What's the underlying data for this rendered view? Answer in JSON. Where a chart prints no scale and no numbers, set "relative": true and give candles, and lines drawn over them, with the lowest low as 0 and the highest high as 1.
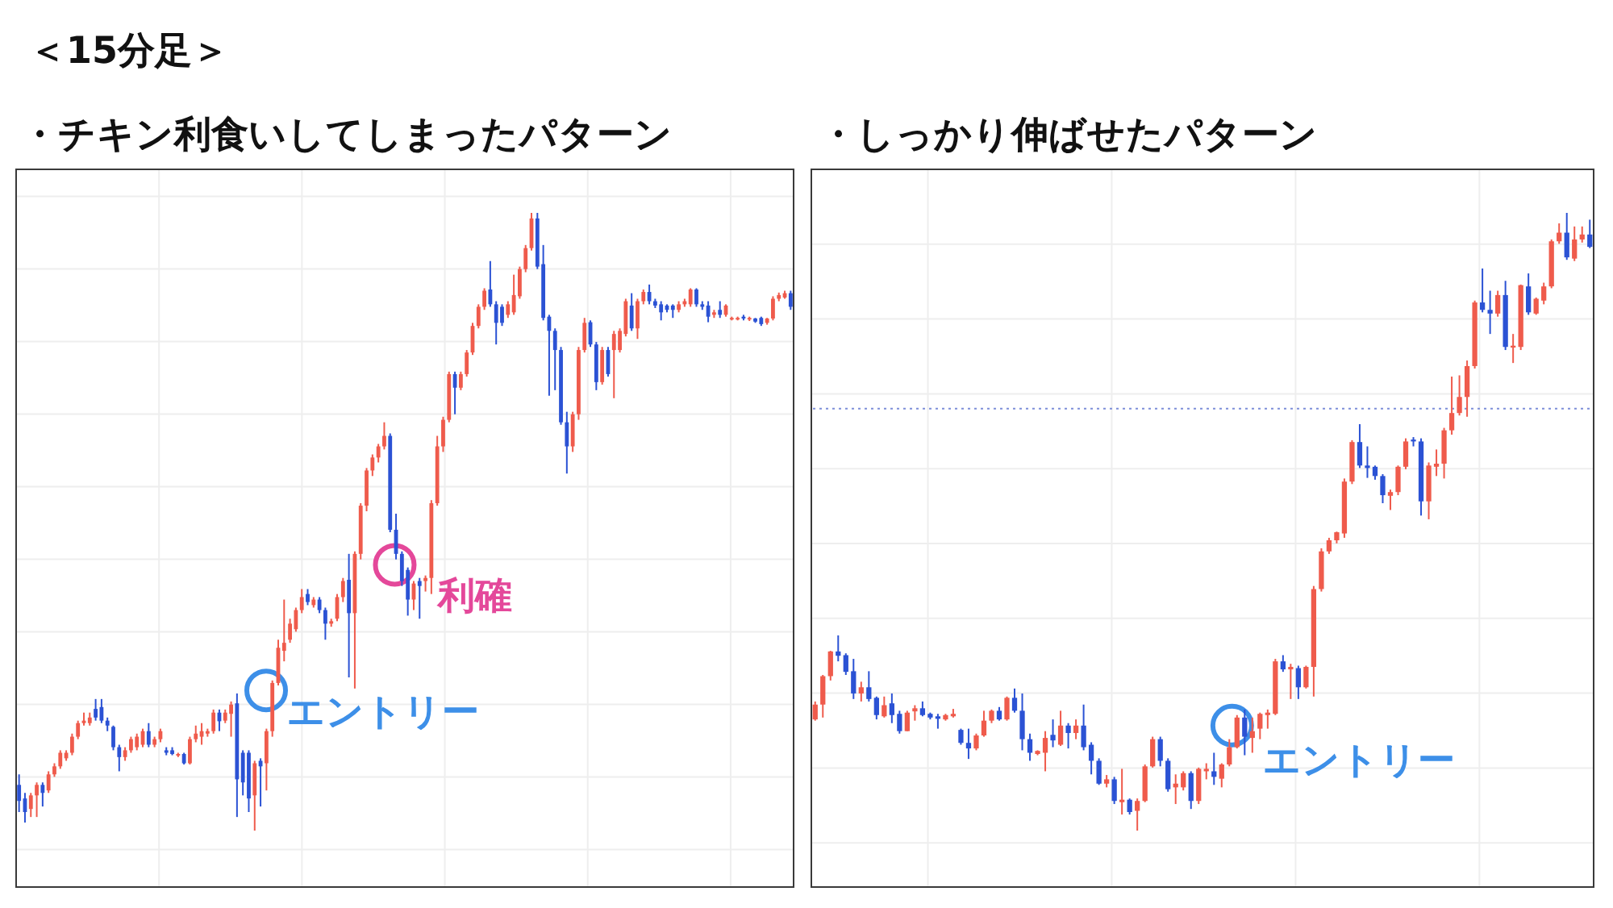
{
  "chart_data": [
    {
      "type": "candlestick",
      "title": "＜15分足＞",
      "subtitle": "・チキン利食いしてしまったパターン",
      "relative": true,
      "grid": true,
      "categories": [
        null,
        null,
        null,
        null,
        null,
        null,
        null,
        null,
        null,
        null,
        null,
        null,
        null,
        null,
        null,
        null,
        null,
        null,
        null,
        null,
        null,
        null,
        null,
        null,
        null,
        null,
        null,
        null,
        null,
        null,
        null,
        null,
        null,
        null,
        null,
        null,
        null,
        null,
        null,
        null,
        null,
        null,
        null,
        null,
        null,
        null,
        null,
        null,
        null,
        null,
        null,
        null,
        null,
        null,
        null,
        null,
        null,
        null,
        null,
        null,
        null,
        null,
        null,
        null,
        null,
        null,
        null,
        null,
        null,
        null,
        null,
        null,
        null,
        null,
        null,
        null,
        null,
        null,
        null,
        null,
        null,
        null,
        null,
        null,
        null,
        null,
        null,
        null,
        null,
        null,
        null,
        null,
        null,
        null,
        null,
        null,
        null,
        null,
        null,
        null,
        null,
        null,
        null,
        null,
        null,
        null,
        null,
        null,
        null,
        null,
        null,
        null,
        null,
        null,
        null,
        null,
        null,
        null,
        null,
        null,
        null,
        null,
        null,
        null,
        null,
        null,
        null,
        null,
        null,
        null,
        null,
        null
      ],
      "ohlc": [
        [
          0.074,
          0.091,
          0.03,
          0.048
        ],
        [
          0.052,
          0.061,
          0.013,
          0.03
        ],
        [
          0.035,
          0.061,
          0.022,
          0.057
        ],
        [
          0.057,
          0.078,
          0.022,
          0.074
        ],
        [
          0.074,
          0.078,
          0.039,
          0.061
        ],
        [
          0.065,
          0.096,
          0.061,
          0.091
        ],
        [
          0.091,
          0.109,
          0.087,
          0.104
        ],
        [
          0.104,
          0.13,
          0.1,
          0.126
        ],
        [
          0.117,
          0.13,
          0.113,
          0.126
        ],
        [
          0.126,
          0.157,
          0.122,
          0.152
        ],
        [
          0.152,
          0.178,
          0.148,
          0.174
        ],
        [
          0.174,
          0.191,
          0.17,
          0.178
        ],
        [
          0.174,
          0.191,
          0.17,
          0.183
        ],
        [
          0.197,
          0.213,
          0.178,
          0.183
        ],
        [
          0.2,
          0.213,
          0.174,
          0.178
        ],
        [
          0.178,
          0.183,
          0.161,
          0.17
        ],
        [
          0.168,
          0.17,
          0.13,
          0.135
        ],
        [
          0.135,
          0.139,
          0.096,
          0.119
        ],
        [
          0.119,
          0.135,
          0.113,
          0.13
        ],
        [
          0.13,
          0.152,
          0.126,
          0.148
        ],
        [
          0.135,
          0.157,
          0.13,
          0.152
        ],
        [
          0.139,
          0.165,
          0.135,
          0.161
        ],
        [
          0.161,
          0.174,
          0.135,
          0.139
        ],
        [
          0.139,
          0.152,
          0.135,
          0.148
        ],
        [
          0.148,
          0.165,
          0.143,
          0.161
        ],
        [
          0.13,
          0.135,
          0.122,
          0.126
        ],
        [
          0.13,
          0.135,
          0.122,
          0.124
        ],
        [
          0.122,
          0.126,
          0.119,
          0.124
        ],
        [
          0.124,
          0.126,
          0.107,
          0.109
        ],
        [
          0.109,
          0.152,
          0.107,
          0.148
        ],
        [
          0.148,
          0.17,
          0.143,
          0.157
        ],
        [
          0.152,
          0.174,
          0.139,
          0.161
        ],
        [
          0.157,
          0.165,
          0.152,
          0.161
        ],
        [
          0.161,
          0.196,
          0.157,
          0.191
        ],
        [
          0.191,
          0.196,
          0.161,
          0.177
        ],
        [
          0.178,
          0.196,
          0.174,
          0.191
        ],
        [
          0.189,
          0.209,
          0.152,
          0.204
        ],
        [
          0.206,
          0.222,
          0.022,
          0.083
        ],
        [
          0.126,
          0.13,
          0.057,
          0.078
        ],
        [
          0.126,
          0.13,
          0.03,
          0.052
        ],
        [
          0.057,
          0.113,
          0,
          0.109
        ],
        [
          0.113,
          0.117,
          0.039,
          0.104
        ],
        [
          0.109,
          0.165,
          0.065,
          0.161
        ],
        [
          0.161,
          0.243,
          0.152,
          0.239
        ],
        [
          0.239,
          0.309,
          0.235,
          0.296
        ],
        [
          0.291,
          0.374,
          0.274,
          0.304
        ],
        [
          0.309,
          0.343,
          0.304,
          0.335
        ],
        [
          0.326,
          0.361,
          0.322,
          0.357
        ],
        [
          0.357,
          0.391,
          0.352,
          0.378
        ],
        [
          0.383,
          0.391,
          0.365,
          0.37
        ],
        [
          0.365,
          0.378,
          0.361,
          0.374
        ],
        [
          0.374,
          0.378,
          0.352,
          0.357
        ],
        [
          0.357,
          0.361,
          0.309,
          0.335
        ],
        [
          0.335,
          0.343,
          0.33,
          0.339
        ],
        [
          0.343,
          0.383,
          0.339,
          0.378
        ],
        [
          0.378,
          0.409,
          0.37,
          0.404
        ],
        [
          0.406,
          0.448,
          0.248,
          0.352
        ],
        [
          0.352,
          0.452,
          0.23,
          0.448
        ],
        [
          0.448,
          0.53,
          0.439,
          0.526
        ],
        [
          0.526,
          0.587,
          0.517,
          0.583
        ],
        [
          0.583,
          0.609,
          0.574,
          0.604
        ],
        [
          0.604,
          0.626,
          0.596,
          0.622
        ],
        [
          0.622,
          0.661,
          0.617,
          0.639
        ],
        [
          0.639,
          0.643,
          0.483,
          0.487
        ],
        [
          0.487,
          0.513,
          0.439,
          0.448
        ],
        [
          0.448,
          0.452,
          0.396,
          0.404
        ],
        [
          0.422,
          0.426,
          0.348,
          0.374
        ],
        [
          0.374,
          0.404,
          0.357,
          0.4
        ],
        [
          0.404,
          0.409,
          0.343,
          0.396
        ],
        [
          0.404,
          0.413,
          0.387,
          0.409
        ],
        [
          0.409,
          0.535,
          0.383,
          0.53
        ],
        [
          0.53,
          0.639,
          0.526,
          0.622
        ],
        [
          0.622,
          0.67,
          0.613,
          0.665
        ],
        [
          0.665,
          0.743,
          0.661,
          0.739
        ],
        [
          0.739,
          0.743,
          0.674,
          0.717
        ],
        [
          0.717,
          0.743,
          0.713,
          0.739
        ],
        [
          0.739,
          0.778,
          0.735,
          0.774
        ],
        [
          0.774,
          0.822,
          0.77,
          0.817
        ],
        [
          0.817,
          0.852,
          0.813,
          0.848
        ],
        [
          0.848,
          0.878,
          0.843,
          0.874
        ],
        [
          0.876,
          0.922,
          0.848,
          0.852
        ],
        [
          0.852,
          0.857,
          0.787,
          0.822
        ],
        [
          0.848,
          0.852,
          0.817,
          0.822
        ],
        [
          0.835,
          0.857,
          0.83,
          0.852
        ],
        [
          0.839,
          0.9,
          0.835,
          0.867
        ],
        [
          0.865,
          0.913,
          0.861,
          0.909
        ],
        [
          0.909,
          0.948,
          0.904,
          0.943
        ],
        [
          0.943,
          1,
          0.939,
          0.991
        ],
        [
          0.991,
          1,
          0.909,
          0.913
        ],
        [
          0.917,
          0.948,
          0.826,
          0.83
        ],
        [
          0.832,
          0.835,
          0.704,
          0.809
        ],
        [
          0.809,
          0.813,
          0.713,
          0.778
        ],
        [
          0.778,
          0.783,
          0.657,
          0.661
        ],
        [
          0.661,
          0.678,
          0.578,
          0.622
        ],
        [
          0.622,
          0.678,
          0.613,
          0.674
        ],
        [
          0.674,
          0.783,
          0.665,
          0.778
        ],
        [
          0.778,
          0.83,
          0.774,
          0.822
        ],
        [
          0.823,
          0.826,
          0.783,
          0.787
        ],
        [
          0.787,
          0.791,
          0.713,
          0.726
        ],
        [
          0.726,
          0.783,
          0.722,
          0.778
        ],
        [
          0.778,
          0.783,
          0.735,
          0.739
        ],
        [
          0.778,
          0.809,
          0.7,
          0.804
        ],
        [
          0.778,
          0.813,
          0.774,
          0.809
        ],
        [
          0.804,
          0.861,
          0.8,
          0.857
        ],
        [
          0.85,
          0.87,
          0.809,
          0.813
        ],
        [
          0.813,
          0.861,
          0.796,
          0.857
        ],
        [
          0.857,
          0.876,
          0.852,
          0.872
        ],
        [
          0.872,
          0.884,
          0.852,
          0.857
        ],
        [
          0.857,
          0.861,
          0.846,
          0.85
        ],
        [
          0.852,
          0.857,
          0.826,
          0.839
        ],
        [
          0.85,
          0.852,
          0.839,
          0.843
        ],
        [
          0.85,
          0.852,
          0.83,
          0.843
        ],
        [
          0.843,
          0.857,
          0.839,
          0.852
        ],
        [
          0.852,
          0.861,
          0.848,
          0.857
        ],
        [
          0.852,
          0.878,
          0.848,
          0.876
        ],
        [
          0.876,
          0.878,
          0.848,
          0.852
        ],
        [
          0.852,
          0.857,
          0.843,
          0.848
        ],
        [
          0.85,
          0.857,
          0.823,
          0.832
        ],
        [
          0.835,
          0.843,
          0.83,
          0.839
        ],
        [
          0.843,
          0.857,
          0.83,
          0.835
        ],
        [
          0.835,
          0.852,
          0.832,
          0.85
        ],
        [
          0.829,
          0.832,
          0.826,
          0.83
        ],
        [
          0.829,
          0.832,
          0.826,
          0.83
        ],
        [
          0.832,
          0.835,
          0.826,
          0.829
        ],
        [
          0.828,
          0.832,
          0.825,
          0.83
        ],
        [
          0.829,
          0.83,
          0.822,
          0.824
        ],
        [
          0.83,
          0.832,
          0.817,
          0.82
        ],
        [
          0.822,
          0.83,
          0.819,
          0.829
        ],
        [
          0.829,
          0.865,
          0.826,
          0.861
        ],
        [
          0.861,
          0.871,
          0.857,
          0.867
        ],
        [
          0.863,
          0.874,
          0.861,
          0.87
        ],
        [
          0.87,
          0.874,
          0.843,
          0.848
        ]
      ],
      "colors": [
        "#2b52d4",
        "#2b52d4",
        "#ef5b4c",
        "#ef5b4c",
        "#2b52d4",
        "#ef5b4c",
        "#ef5b4c",
        "#ef5b4c",
        "#ef5b4c",
        "#ef5b4c",
        "#ef5b4c",
        "#ef5b4c",
        "#ef5b4c",
        "#2b52d4",
        "#2b52d4",
        "#2b52d4",
        "#2b52d4",
        "#2b52d4",
        "#ef5b4c",
        "#ef5b4c",
        "#ef5b4c",
        "#ef5b4c",
        "#2b52d4",
        "#ef5b4c",
        "#ef5b4c",
        "#2b52d4",
        "#2b52d4",
        "#ef5b4c",
        "#2b52d4",
        "#ef5b4c",
        "#ef5b4c",
        "#ef5b4c",
        "#ef5b4c",
        "#ef5b4c",
        "#2b52d4",
        "#ef5b4c",
        "#ef5b4c",
        "#2b52d4",
        "#2b52d4",
        "#2b52d4",
        "#ef5b4c",
        "#2b52d4",
        "#ef5b4c",
        "#ef5b4c",
        "#ef5b4c",
        "#ef5b4c",
        "#ef5b4c",
        "#ef5b4c",
        "#ef5b4c",
        "#2b52d4",
        "#ef5b4c",
        "#2b52d4",
        "#2b52d4",
        "#ef5b4c",
        "#ef5b4c",
        "#ef5b4c",
        "#2b52d4",
        "#ef5b4c",
        "#ef5b4c",
        "#ef5b4c",
        "#ef5b4c",
        "#ef5b4c",
        "#ef5b4c",
        "#2b52d4",
        "#2b52d4",
        "#2b52d4",
        "#2b52d4",
        "#ef5b4c",
        "#2b52d4",
        "#ef5b4c",
        "#ef5b4c",
        "#ef5b4c",
        "#ef5b4c",
        "#ef5b4c",
        "#2b52d4",
        "#ef5b4c",
        "#ef5b4c",
        "#ef5b4c",
        "#ef5b4c",
        "#ef5b4c",
        "#2b52d4",
        "#2b52d4",
        "#2b52d4",
        "#ef5b4c",
        "#ef5b4c",
        "#ef5b4c",
        "#ef5b4c",
        "#ef5b4c",
        "#2b52d4",
        "#2b52d4",
        "#2b52d4",
        "#2b52d4",
        "#2b52d4",
        "#2b52d4",
        "#ef5b4c",
        "#ef5b4c",
        "#ef5b4c",
        "#2b52d4",
        "#2b52d4",
        "#ef5b4c",
        "#2b52d4",
        "#ef5b4c",
        "#ef5b4c",
        "#ef5b4c",
        "#2b52d4",
        "#ef5b4c",
        "#ef5b4c",
        "#2b52d4",
        "#2b52d4",
        "#2b52d4",
        "#2b52d4",
        "#2b52d4",
        "#ef5b4c",
        "#ef5b4c",
        "#ef5b4c",
        "#2b52d4",
        "#2b52d4",
        "#2b52d4",
        "#ef5b4c",
        "#2b52d4",
        "#ef5b4c",
        "#ef5b4c",
        "#ef5b4c",
        "#2b52d4",
        "#ef5b4c",
        "#2b52d4",
        "#2b52d4",
        "#ef5b4c",
        "#ef5b4c",
        "#ef5b4c",
        "#ef5b4c",
        "#2b52d4"
      ],
      "annotations": [
        "エントリー",
        "利確"
      ]
    },
    {
      "type": "candlestick",
      "subtitle": "・しっかり伸ばせたパターン",
      "relative": true,
      "grid": true,
      "categories": [
        null,
        null,
        null,
        null,
        null,
        null,
        null,
        null,
        null,
        null,
        null,
        null,
        null,
        null,
        null,
        null,
        null,
        null,
        null,
        null,
        null,
        null,
        null,
        null,
        null,
        null,
        null,
        null,
        null,
        null,
        null,
        null,
        null,
        null,
        null,
        null,
        null,
        null,
        null,
        null,
        null,
        null,
        null,
        null,
        null,
        null,
        null,
        null,
        null,
        null,
        null,
        null,
        null,
        null,
        null,
        null,
        null,
        null,
        null,
        null,
        null,
        null,
        null,
        null,
        null,
        null,
        null,
        null,
        null,
        null,
        null,
        null,
        null,
        null,
        null,
        null,
        null,
        null,
        null,
        null,
        null,
        null,
        null,
        null,
        null,
        null,
        null,
        null,
        null,
        null,
        null,
        null,
        null,
        null,
        null,
        null,
        null,
        null,
        null,
        null,
        null,
        null
      ],
      "ohlc": [
        [
          0.18,
          0.209,
          0.178,
          0.204
        ],
        [
          0.204,
          0.252,
          0.183,
          0.25
        ],
        [
          0.25,
          0.291,
          0.243,
          0.29
        ],
        [
          0.29,
          0.316,
          0.274,
          0.283
        ],
        [
          0.284,
          0.287,
          0.252,
          0.257
        ],
        [
          0.258,
          0.278,
          0.213,
          0.222
        ],
        [
          0.222,
          0.241,
          0.209,
          0.232
        ],
        [
          0.232,
          0.258,
          0.209,
          0.213
        ],
        [
          0.215,
          0.217,
          0.18,
          0.187
        ],
        [
          0.185,
          0.217,
          0.183,
          0.203
        ],
        [
          0.206,
          0.222,
          0.174,
          0.187
        ],
        [
          0.189,
          0.194,
          0.157,
          0.161
        ],
        [
          0.161,
          0.194,
          0.161,
          0.191
        ],
        [
          0.193,
          0.203,
          0.178,
          0.198
        ],
        [
          0.198,
          0.209,
          0.185,
          0.187
        ],
        [
          0.189,
          0.191,
          0.18,
          0.183
        ],
        [
          0.185,
          0.189,
          0.165,
          0.181
        ],
        [
          0.18,
          0.189,
          0.178,
          0.187
        ],
        [
          0.185,
          0.197,
          0.183,
          0.189
        ],
        [
          0.163,
          0.165,
          0.139,
          0.142
        ],
        [
          0.142,
          0.165,
          0.116,
          0.133
        ],
        [
          0.133,
          0.157,
          0.13,
          0.154
        ],
        [
          0.154,
          0.194,
          0.152,
          0.178
        ],
        [
          0.178,
          0.196,
          0.174,
          0.194
        ],
        [
          0.194,
          0.2,
          0.178,
          0.18
        ],
        [
          0.18,
          0.217,
          0.178,
          0.215
        ],
        [
          0.215,
          0.23,
          0.191,
          0.194
        ],
        [
          0.194,
          0.222,
          0.13,
          0.148
        ],
        [
          0.148,
          0.157,
          0.113,
          0.126
        ],
        [
          0.124,
          0.13,
          0.122,
          0.129
        ],
        [
          0.126,
          0.161,
          0.096,
          0.15
        ],
        [
          0.155,
          0.18,
          0.135,
          0.146
        ],
        [
          0.139,
          0.194,
          0.137,
          0.17
        ],
        [
          0.17,
          0.174,
          0.133,
          0.158
        ],
        [
          0.158,
          0.18,
          0.148,
          0.17
        ],
        [
          0.17,
          0.204,
          0.13,
          0.135
        ],
        [
          0.139,
          0.143,
          0.091,
          0.113
        ],
        [
          0.113,
          0.117,
          0.074,
          0.076
        ],
        [
          0.076,
          0.09,
          0.07,
          0.083
        ],
        [
          0.083,
          0.087,
          0.043,
          0.048
        ],
        [
          0.046,
          0.1,
          0.026,
          0.05
        ],
        [
          0.05,
          0.052,
          0.026,
          0.03
        ],
        [
          0.032,
          0.052,
          0,
          0.048
        ],
        [
          0.048,
          0.107,
          0.046,
          0.104
        ],
        [
          0.104,
          0.152,
          0.102,
          0.148
        ],
        [
          0.148,
          0.152,
          0.104,
          0.113
        ],
        [
          0.113,
          0.117,
          0.063,
          0.067
        ],
        [
          0.07,
          0.091,
          0.043,
          0.076
        ],
        [
          0.07,
          0.096,
          0.065,
          0.093
        ],
        [
          0.093,
          0.096,
          0.035,
          0.048
        ],
        [
          0.048,
          0.102,
          0.043,
          0.1
        ],
        [
          0.096,
          0.109,
          0.083,
          0.1
        ],
        [
          0.096,
          0.126,
          0.074,
          0.087
        ],
        [
          0.084,
          0.109,
          0.07,
          0.107
        ],
        [
          0.107,
          0.148,
          0.104,
          0.135
        ],
        [
          0.135,
          0.187,
          0.133,
          0.183
        ],
        [
          0.183,
          0.196,
          0.122,
          0.152
        ],
        [
          0.15,
          0.183,
          0.126,
          0.161
        ],
        [
          0.165,
          0.191,
          0.148,
          0.189
        ],
        [
          0.187,
          0.196,
          0.165,
          0.191
        ],
        [
          0.189,
          0.278,
          0.187,
          0.274
        ],
        [
          0.274,
          0.284,
          0.257,
          0.261
        ],
        [
          0.261,
          0.27,
          0.213,
          0.265
        ],
        [
          0.263,
          0.267,
          0.213,
          0.232
        ],
        [
          0.232,
          0.267,
          0.23,
          0.265
        ],
        [
          0.265,
          0.396,
          0.217,
          0.391
        ],
        [
          0.391,
          0.457,
          0.387,
          0.452
        ],
        [
          0.452,
          0.474,
          0.448,
          0.47
        ],
        [
          0.47,
          0.484,
          0.465,
          0.483
        ],
        [
          0.481,
          0.57,
          0.474,
          0.565
        ],
        [
          0.565,
          0.632,
          0.561,
          0.629
        ],
        [
          0.629,
          0.658,
          0.587,
          0.591
        ],
        [
          0.591,
          0.622,
          0.571,
          0.587
        ],
        [
          0.589,
          0.591,
          0.568,
          0.574
        ],
        [
          0.574,
          0.577,
          0.53,
          0.543
        ],
        [
          0.542,
          0.552,
          0.519,
          0.548
        ],
        [
          0.548,
          0.591,
          0.543,
          0.589
        ],
        [
          0.589,
          0.635,
          0.585,
          0.63
        ],
        [
          0.633,
          0.637,
          0.622,
          0.63
        ],
        [
          0.63,
          0.635,
          0.51,
          0.533
        ],
        [
          0.533,
          0.596,
          0.504,
          0.591
        ],
        [
          0.589,
          0.617,
          0.574,
          0.594
        ],
        [
          0.594,
          0.652,
          0.57,
          0.648
        ],
        [
          0.648,
          0.735,
          0.641,
          0.676
        ],
        [
          0.676,
          0.737,
          0.672,
          0.702
        ],
        [
          0.702,
          0.761,
          0.67,
          0.752
        ],
        [
          0.752,
          0.858,
          0.748,
          0.855
        ],
        [
          0.855,
          0.91,
          0.839,
          0.843
        ],
        [
          0.843,
          0.874,
          0.804,
          0.837
        ],
        [
          0.837,
          0.874,
          0.832,
          0.867
        ],
        [
          0.867,
          0.89,
          0.778,
          0.783
        ],
        [
          0.782,
          0.804,
          0.757,
          0.785
        ],
        [
          0.783,
          0.884,
          0.778,
          0.883
        ],
        [
          0.881,
          0.902,
          0.835,
          0.839
        ],
        [
          0.837,
          0.863,
          0.835,
          0.861
        ],
        [
          0.858,
          0.887,
          0.852,
          0.881
        ],
        [
          0.881,
          0.957,
          0.878,
          0.954
        ],
        [
          0.954,
          0.983,
          0.95,
          0.968
        ],
        [
          0.968,
          1,
          0.924,
          0.928
        ],
        [
          0.926,
          0.978,
          0.922,
          0.957
        ],
        [
          0.957,
          0.978,
          0.952,
          0.965
        ],
        [
          0.965,
          0.989,
          0.943,
          0.945
        ]
      ],
      "colors": [
        "#ef5b4c",
        "#ef5b4c",
        "#ef5b4c",
        "#2b52d4",
        "#2b52d4",
        "#2b52d4",
        "#ef5b4c",
        "#2b52d4",
        "#2b52d4",
        "#ef5b4c",
        "#2b52d4",
        "#2b52d4",
        "#ef5b4c",
        "#ef5b4c",
        "#2b52d4",
        "#2b52d4",
        "#2b52d4",
        "#ef5b4c",
        "#ef5b4c",
        "#2b52d4",
        "#2b52d4",
        "#ef5b4c",
        "#ef5b4c",
        "#ef5b4c",
        "#2b52d4",
        "#ef5b4c",
        "#2b52d4",
        "#2b52d4",
        "#2b52d4",
        "#ef5b4c",
        "#ef5b4c",
        "#2b52d4",
        "#ef5b4c",
        "#2b52d4",
        "#ef5b4c",
        "#2b52d4",
        "#2b52d4",
        "#2b52d4",
        "#ef5b4c",
        "#2b52d4",
        "#ef5b4c",
        "#2b52d4",
        "#ef5b4c",
        "#ef5b4c",
        "#ef5b4c",
        "#2b52d4",
        "#2b52d4",
        "#ef5b4c",
        "#ef5b4c",
        "#2b52d4",
        "#ef5b4c",
        "#ef5b4c",
        "#2b52d4",
        "#ef5b4c",
        "#ef5b4c",
        "#ef5b4c",
        "#2b52d4",
        "#ef5b4c",
        "#ef5b4c",
        "#ef5b4c",
        "#ef5b4c",
        "#2b52d4",
        "#ef5b4c",
        "#2b52d4",
        "#ef5b4c",
        "#ef5b4c",
        "#ef5b4c",
        "#ef5b4c",
        "#ef5b4c",
        "#ef5b4c",
        "#ef5b4c",
        "#2b52d4",
        "#2b52d4",
        "#2b52d4",
        "#2b52d4",
        "#ef5b4c",
        "#ef5b4c",
        "#ef5b4c",
        "#2b52d4",
        "#2b52d4",
        "#ef5b4c",
        "#ef5b4c",
        "#ef5b4c",
        "#ef5b4c",
        "#ef5b4c",
        "#ef5b4c",
        "#ef5b4c",
        "#2b52d4",
        "#2b52d4",
        "#ef5b4c",
        "#2b52d4",
        "#ef5b4c",
        "#ef5b4c",
        "#2b52d4",
        "#ef5b4c",
        "#ef5b4c",
        "#ef5b4c",
        "#ef5b4c",
        "#2b52d4",
        "#ef5b4c",
        "#ef5b4c",
        "#2b52d4"
      ],
      "ref_lines": [
        {
          "axis": "y",
          "value": 0.683,
          "color": "#7d8fd9",
          "line_style": "dotted"
        }
      ],
      "annotations": [
        "エントリー"
      ]
    }
  ]
}
